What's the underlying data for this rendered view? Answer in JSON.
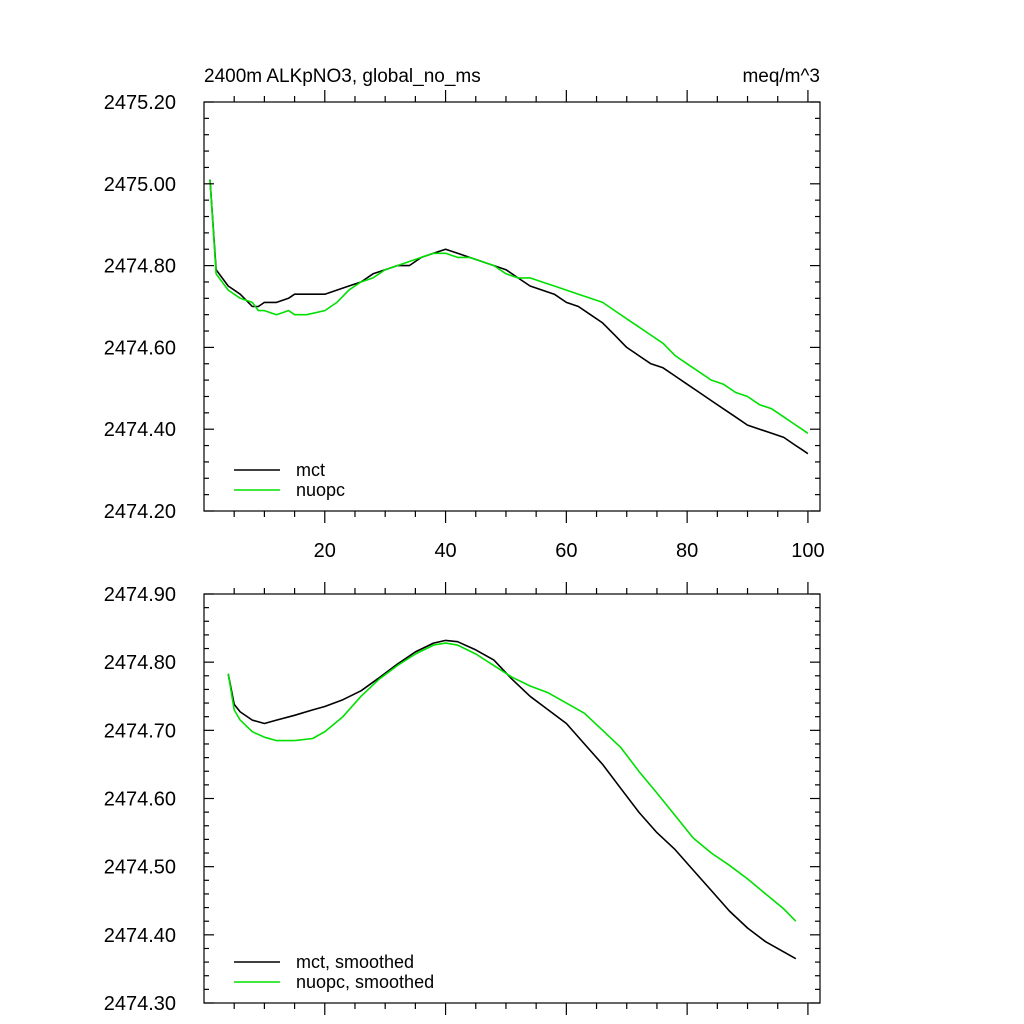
{
  "chart_data": [
    {
      "type": "line",
      "title": "2400m ALKpNO3, global_no_ms",
      "units": "meq/m^3",
      "xlim": [
        0,
        102
      ],
      "ylim": [
        2474.2,
        2475.2
      ],
      "xticks": [
        20,
        40,
        60,
        80,
        100
      ],
      "xtick_labels": [
        "20",
        "40",
        "60",
        "80",
        "100"
      ],
      "yticks": [
        2474.2,
        2474.4,
        2474.6,
        2474.8,
        2475.0,
        2475.2
      ],
      "ytick_labels": [
        "2474.20",
        "2474.40",
        "2474.60",
        "2474.80",
        "2475.00",
        "2475.20"
      ],
      "legend_position": "bottom-left",
      "series": [
        {
          "name": "mct",
          "color": "#000000",
          "x": [
            1,
            2,
            4,
            6,
            8,
            9,
            10,
            12,
            14,
            15,
            17,
            20,
            22,
            24,
            26,
            28,
            30,
            32,
            34,
            36,
            38,
            40,
            42,
            44,
            46,
            48,
            50,
            52,
            54,
            56,
            58,
            60,
            62,
            64,
            66,
            68,
            70,
            72,
            74,
            76,
            78,
            80,
            82,
            84,
            86,
            88,
            90,
            92,
            94,
            96,
            98,
            99,
            100
          ],
          "values": [
            2475.01,
            2474.79,
            2474.75,
            2474.73,
            2474.7,
            2474.7,
            2474.71,
            2474.71,
            2474.72,
            2474.73,
            2474.73,
            2474.73,
            2474.74,
            2474.75,
            2474.76,
            2474.78,
            2474.79,
            2474.8,
            2474.8,
            2474.82,
            2474.83,
            2474.84,
            2474.83,
            2474.82,
            2474.81,
            2474.8,
            2474.79,
            2474.77,
            2474.75,
            2474.74,
            2474.73,
            2474.71,
            2474.7,
            2474.68,
            2474.66,
            2474.63,
            2474.6,
            2474.58,
            2474.56,
            2474.55,
            2474.53,
            2474.51,
            2474.49,
            2474.47,
            2474.45,
            2474.43,
            2474.41,
            2474.4,
            2474.39,
            2474.38,
            2474.36,
            2474.35,
            2474.34
          ]
        },
        {
          "name": "nuopc",
          "color": "#00e000",
          "x": [
            1,
            2,
            4,
            6,
            8,
            9,
            10,
            12,
            14,
            15,
            17,
            20,
            22,
            24,
            26,
            28,
            30,
            32,
            34,
            36,
            38,
            40,
            42,
            44,
            46,
            48,
            50,
            52,
            54,
            56,
            58,
            60,
            62,
            64,
            66,
            68,
            70,
            72,
            74,
            76,
            78,
            80,
            82,
            84,
            86,
            88,
            90,
            92,
            94,
            96,
            98,
            99,
            100
          ],
          "values": [
            2475.01,
            2474.78,
            2474.74,
            2474.72,
            2474.71,
            2474.69,
            2474.69,
            2474.68,
            2474.69,
            2474.68,
            2474.68,
            2474.69,
            2474.71,
            2474.74,
            2474.76,
            2474.77,
            2474.79,
            2474.8,
            2474.81,
            2474.82,
            2474.83,
            2474.83,
            2474.82,
            2474.82,
            2474.81,
            2474.8,
            2474.78,
            2474.77,
            2474.77,
            2474.76,
            2474.75,
            2474.74,
            2474.73,
            2474.72,
            2474.71,
            2474.69,
            2474.67,
            2474.65,
            2474.63,
            2474.61,
            2474.58,
            2474.56,
            2474.54,
            2474.52,
            2474.51,
            2474.49,
            2474.48,
            2474.46,
            2474.45,
            2474.43,
            2474.41,
            2474.4,
            2474.39
          ]
        }
      ]
    },
    {
      "type": "line",
      "xlim": [
        0,
        102
      ],
      "ylim": [
        2474.3,
        2474.9
      ],
      "xticks": [
        20,
        40,
        60,
        80,
        100
      ],
      "yticks": [
        2474.3,
        2474.4,
        2474.5,
        2474.6,
        2474.7,
        2474.8,
        2474.9
      ],
      "ytick_labels": [
        "2474.30",
        "2474.40",
        "2474.50",
        "2474.60",
        "2474.70",
        "2474.80",
        "2474.90"
      ],
      "legend_position": "bottom-left",
      "series": [
        {
          "name": "mct, smoothed",
          "color": "#000000",
          "x": [
            4,
            5,
            6,
            8,
            10,
            12,
            15,
            18,
            20,
            23,
            26,
            29,
            32,
            35,
            38,
            40,
            42,
            45,
            48,
            51,
            54,
            57,
            60,
            63,
            66,
            69,
            72,
            75,
            78,
            81,
            84,
            87,
            90,
            93,
            96,
            98
          ],
          "values": [
            2474.783,
            2474.738,
            2474.727,
            2474.715,
            2474.71,
            2474.715,
            2474.722,
            2474.73,
            2474.735,
            2474.745,
            2474.758,
            2474.777,
            2474.797,
            2474.815,
            2474.828,
            2474.832,
            2474.83,
            2474.818,
            2474.803,
            2474.775,
            2474.75,
            2474.73,
            2474.71,
            2474.68,
            2474.65,
            2474.615,
            2474.58,
            2474.55,
            2474.525,
            2474.495,
            2474.465,
            2474.435,
            2474.41,
            2474.39,
            2474.375,
            2474.365
          ]
        },
        {
          "name": "nuopc, smoothed",
          "color": "#00e000",
          "x": [
            4,
            5,
            6,
            8,
            10,
            12,
            15,
            18,
            20,
            23,
            26,
            29,
            32,
            35,
            38,
            40,
            42,
            45,
            48,
            51,
            54,
            57,
            60,
            63,
            66,
            69,
            72,
            75,
            78,
            81,
            84,
            87,
            90,
            93,
            96,
            98
          ],
          "values": [
            2474.783,
            2474.73,
            2474.715,
            2474.698,
            2474.69,
            2474.685,
            2474.685,
            2474.688,
            2474.698,
            2474.72,
            2474.75,
            2474.775,
            2474.795,
            2474.812,
            2474.825,
            2474.828,
            2474.825,
            2474.812,
            2474.795,
            2474.778,
            2474.765,
            2474.755,
            2474.74,
            2474.725,
            2474.7,
            2474.675,
            2474.64,
            2474.608,
            2474.575,
            2474.542,
            2474.52,
            2474.502,
            2474.482,
            2474.46,
            2474.438,
            2474.42
          ]
        }
      ]
    }
  ]
}
